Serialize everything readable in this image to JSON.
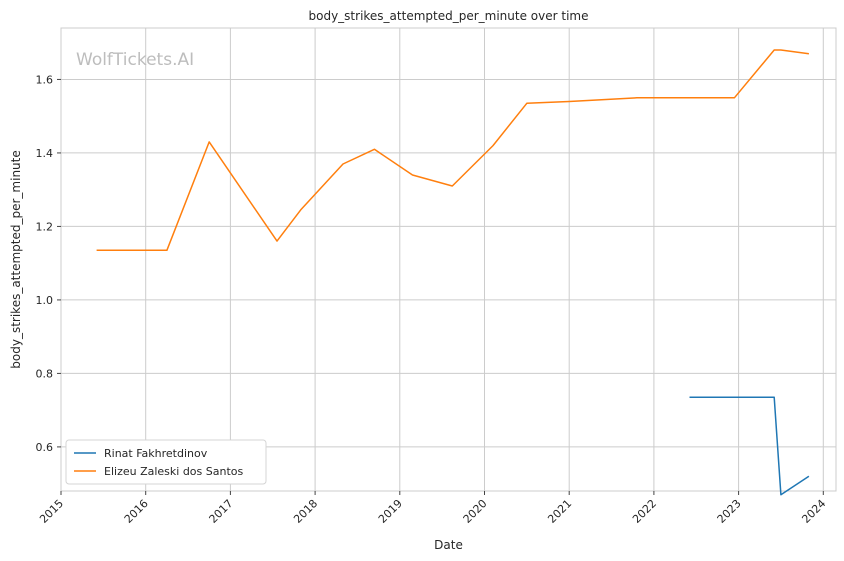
{
  "chart_data": {
    "type": "line",
    "title": "body_strikes_attempted_per_minute over time",
    "xlabel": "Date",
    "ylabel": "body_strikes_attempted_per_minute",
    "watermark": "WolfTickets.AI",
    "xlim": [
      2015.0,
      2024.15
    ],
    "ylim": [
      0.48,
      1.74
    ],
    "x_ticks": [
      2015,
      2016,
      2017,
      2018,
      2019,
      2020,
      2021,
      2022,
      2023,
      2024
    ],
    "x_tick_labels": [
      "2015",
      "2016",
      "2017",
      "2018",
      "2019",
      "2020",
      "2021",
      "2022",
      "2023",
      "2024"
    ],
    "y_ticks": [
      0.6,
      0.8,
      1.0,
      1.2,
      1.4,
      1.6
    ],
    "y_tick_labels": [
      "0.6",
      "0.8",
      "1.0",
      "1.2",
      "1.4",
      "1.6"
    ],
    "grid": true,
    "legend_position": "lower-left",
    "series": [
      {
        "name": "Rinat Fakhretdinov",
        "color": "#1f77b4",
        "points": [
          [
            2022.42,
            0.735
          ],
          [
            2023.42,
            0.735
          ],
          [
            2023.5,
            0.47
          ],
          [
            2023.83,
            0.52
          ]
        ]
      },
      {
        "name": "Elizeu Zaleski dos Santos",
        "color": "#ff7f0e",
        "points": [
          [
            2015.42,
            1.135
          ],
          [
            2016.25,
            1.135
          ],
          [
            2016.75,
            1.43
          ],
          [
            2017.55,
            1.16
          ],
          [
            2017.83,
            1.245
          ],
          [
            2018.33,
            1.37
          ],
          [
            2018.7,
            1.41
          ],
          [
            2019.15,
            1.34
          ],
          [
            2019.62,
            1.31
          ],
          [
            2020.1,
            1.42
          ],
          [
            2020.5,
            1.535
          ],
          [
            2021.0,
            1.54
          ],
          [
            2021.8,
            1.55
          ],
          [
            2022.95,
            1.55
          ],
          [
            2023.42,
            1.68
          ],
          [
            2023.5,
            1.68
          ],
          [
            2023.83,
            1.67
          ]
        ]
      }
    ]
  }
}
